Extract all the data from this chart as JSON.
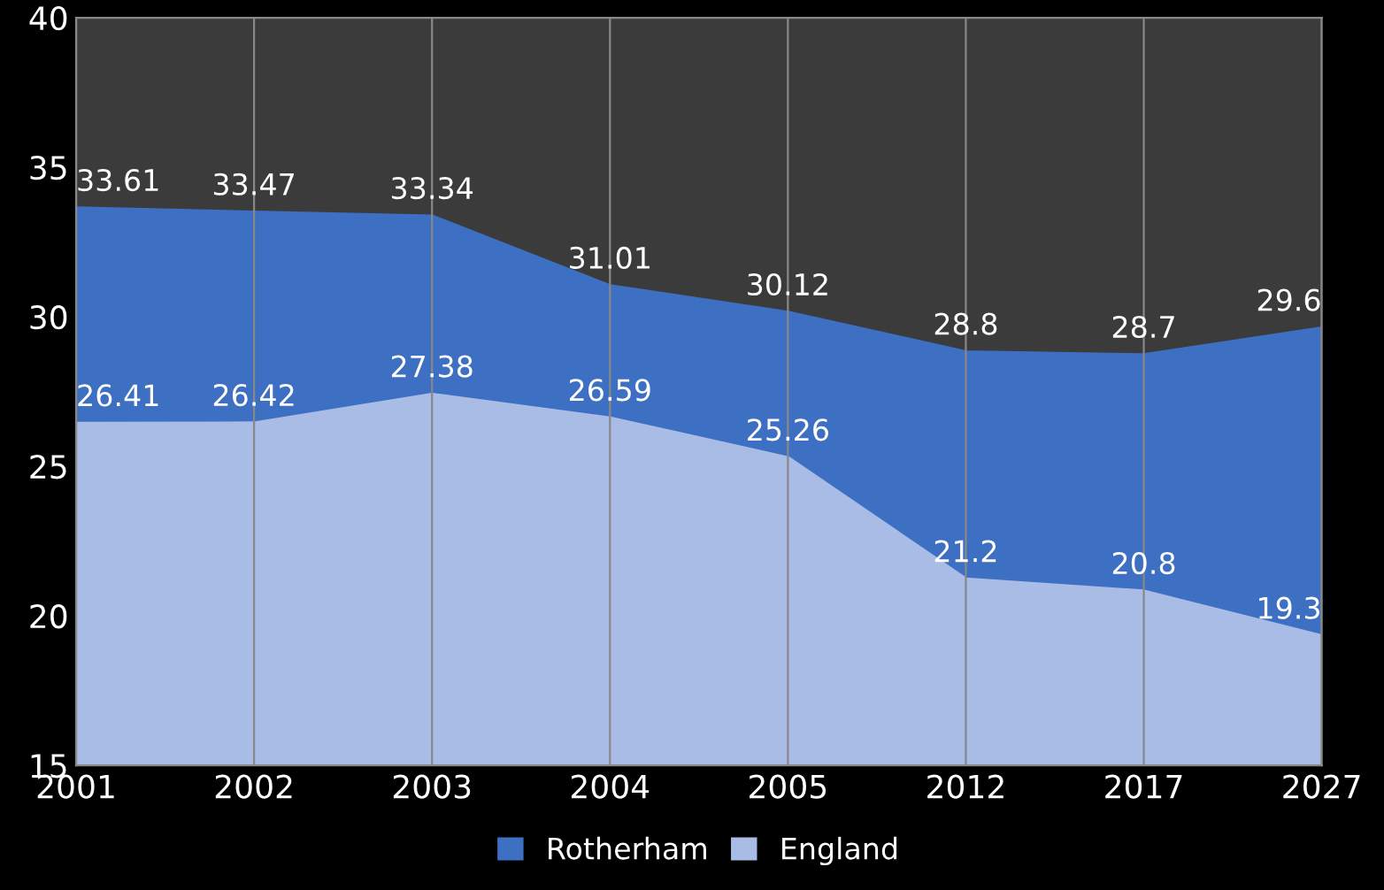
{
  "chart_data": {
    "type": "area",
    "categories": [
      "2001",
      "2002",
      "2003",
      "2004",
      "2005",
      "2012",
      "2017",
      "2027"
    ],
    "series": [
      {
        "name": "Rotherham",
        "color": "#3d6fc2",
        "values": [
          33.61,
          33.47,
          33.34,
          31.01,
          30.12,
          28.8,
          28.7,
          29.6
        ]
      },
      {
        "name": "England",
        "color": "#a8bce6",
        "values": [
          26.41,
          26.42,
          27.38,
          26.59,
          25.26,
          21.2,
          20.8,
          19.3
        ]
      }
    ],
    "ylim": [
      15,
      40
    ],
    "yticks": [
      15,
      20,
      25,
      30,
      35,
      40
    ],
    "grid": "x",
    "legend": "bottom",
    "data_labels": true
  }
}
